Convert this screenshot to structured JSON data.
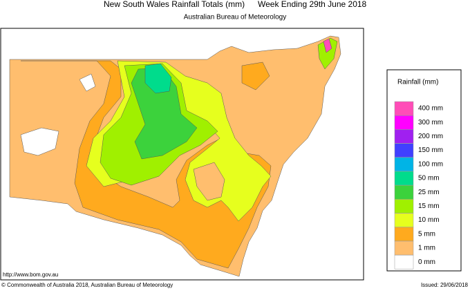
{
  "header": {
    "title": "New South Wales Rainfall Totals (mm)",
    "period": "Week Ending 29th June 2018",
    "subtitle": "Australian Bureau of Meteorology"
  },
  "legend": {
    "title": "Rainfall (mm)",
    "items": [
      {
        "label": "400 mm",
        "color": "#ff4db8"
      },
      {
        "label": "300 mm",
        "color": "#ff00ff"
      },
      {
        "label": "200 mm",
        "color": "#a020f0"
      },
      {
        "label": "150 mm",
        "color": "#4040ff"
      },
      {
        "label": "100 mm",
        "color": "#00b4e6"
      },
      {
        "label": "50 mm",
        "color": "#00dc8c"
      },
      {
        "label": "25 mm",
        "color": "#3cd23c"
      },
      {
        "label": "15 mm",
        "color": "#a0f000"
      },
      {
        "label": "10 mm",
        "color": "#e6ff1e"
      },
      {
        "label": "5 mm",
        "color": "#ffaa1e"
      },
      {
        "label": "1 mm",
        "color": "#ffbe6e"
      },
      {
        "label": "0 mm",
        "color": "#ffffff"
      }
    ]
  },
  "footer": {
    "url": "http://www.bom.gov.au",
    "copyright": "© Commonwealth of Australia 2018, Australian Bureau of Meteorology",
    "issued": "Issued: 29/06/2018"
  }
}
